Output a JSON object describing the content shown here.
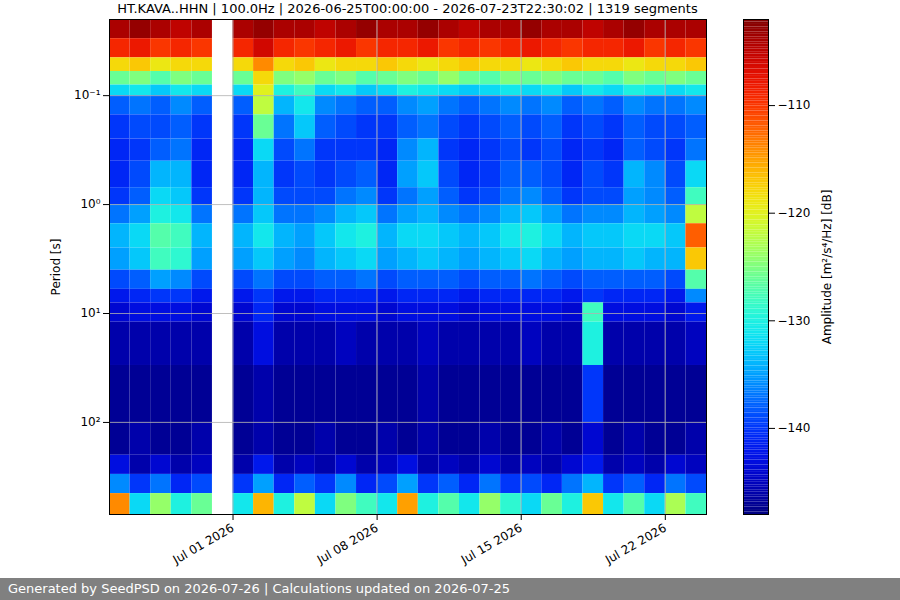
{
  "chart_data": {
    "type": "heatmap",
    "title": "HT.KAVA..HHN | 100.0Hz | 2026-06-25T00:00:00 - 2026-07-23T22:30:02 | 1319 segments",
    "y_label": "Period [s]",
    "log": "y",
    "grid": true,
    "xlim": [
      "2026-06-25",
      "2026-07-24"
    ],
    "xticks": [
      {
        "value": "2026-07-01",
        "label": "Jul 01 2026"
      },
      {
        "value": "2026-07-08",
        "label": "Jul 08 2026"
      },
      {
        "value": "2026-07-15",
        "label": "Jul 15 2026"
      },
      {
        "value": "2026-07-22",
        "label": "Jul 22 2026"
      }
    ],
    "ylim": [
      0.02,
      700
    ],
    "yticks": [
      {
        "value": 0.1,
        "label": "10⁻¹"
      },
      {
        "value": 1,
        "label": "10⁰"
      },
      {
        "value": 10,
        "label": "10¹"
      },
      {
        "value": 100,
        "label": "10²"
      }
    ],
    "x": [
      "2026-06-25",
      "2026-06-26",
      "2026-06-27",
      "2026-06-28",
      "2026-06-29",
      "2026-06-30",
      "2026-07-01",
      "2026-07-02",
      "2026-07-03",
      "2026-07-04",
      "2026-07-05",
      "2026-07-06",
      "2026-07-07",
      "2026-07-08",
      "2026-07-09",
      "2026-07-10",
      "2026-07-11",
      "2026-07-12",
      "2026-07-13",
      "2026-07-14",
      "2026-07-15",
      "2026-07-16",
      "2026-07-17",
      "2026-07-18",
      "2026-07-19",
      "2026-07-20",
      "2026-07-21",
      "2026-07-22",
      "2026-07-23"
    ],
    "period_edges": [
      0.02,
      0.03,
      0.045,
      0.06,
      0.08,
      0.1,
      0.15,
      0.25,
      0.4,
      0.7,
      1,
      1.5,
      2.5,
      4,
      6,
      8,
      12,
      30,
      100,
      200,
      300,
      450,
      700
    ],
    "values": [
      [
        -104,
        -103,
        -104,
        -105,
        -104,
        null,
        -104,
        -103,
        -104,
        -104,
        -105,
        -104,
        -103,
        -104,
        -104,
        -103,
        -104,
        -105,
        -104,
        -104,
        -103,
        -104,
        -104,
        -105,
        -104,
        -103,
        -104,
        -104,
        -104
      ],
      [
        -109,
        -108,
        -110,
        -109,
        -110,
        null,
        -109,
        -106,
        -109,
        -110,
        -109,
        -108,
        -110,
        -109,
        -109,
        -108,
        -110,
        -109,
        -110,
        -109,
        -108,
        -109,
        -110,
        -109,
        -109,
        -108,
        -110,
        -109,
        -110
      ],
      [
        -118,
        -117,
        -119,
        -118,
        -118,
        null,
        -118,
        -114,
        -118,
        -117,
        -119,
        -118,
        -118,
        -117,
        -118,
        -119,
        -118,
        -117,
        -118,
        -118,
        -119,
        -118,
        -117,
        -118,
        -118,
        -119,
        -118,
        -118,
        -117
      ],
      [
        -126,
        -125,
        -127,
        -125,
        -126,
        null,
        -126,
        -118,
        -125,
        -124,
        -126,
        -125,
        -127,
        -126,
        -125,
        -126,
        -124,
        -126,
        -127,
        -125,
        -126,
        -125,
        -126,
        -126,
        -127,
        -125,
        -126,
        -125,
        -126
      ],
      [
        -132,
        -131,
        -133,
        -131,
        -132,
        null,
        -132,
        -120,
        -130,
        -128,
        -132,
        -131,
        -133,
        -132,
        -130,
        -131,
        -132,
        -133,
        -132,
        -131,
        -132,
        -131,
        -133,
        -131,
        -132,
        -130,
        -131,
        -132,
        -131
      ],
      [
        -138,
        -137,
        -138,
        -136,
        -138,
        null,
        -138,
        -122,
        -134,
        -131,
        -136,
        -137,
        -138,
        -138,
        -136,
        -135,
        -137,
        -138,
        -137,
        -136,
        -137,
        -136,
        -138,
        -137,
        -138,
        -136,
        -137,
        -137,
        -136
      ],
      [
        -140,
        -139,
        -139,
        -138,
        -140,
        null,
        -140,
        -126,
        -137,
        -133,
        -138,
        -139,
        -140,
        -140,
        -138,
        -137,
        -139,
        -140,
        -139,
        -138,
        -139,
        -138,
        -140,
        -139,
        -140,
        -138,
        -139,
        -139,
        -138
      ],
      [
        -141,
        -140,
        -138,
        -137,
        -141,
        null,
        -141,
        -132,
        -139,
        -137,
        -140,
        -140,
        -140,
        -141,
        -136,
        -134,
        -140,
        -141,
        -140,
        -139,
        -140,
        -139,
        -141,
        -140,
        -141,
        -138,
        -139,
        -140,
        -137
      ],
      [
        -141,
        -139,
        -134,
        -134,
        -141,
        null,
        -141,
        -134,
        -140,
        -139,
        -140,
        -139,
        -138,
        -141,
        -135,
        -133,
        -139,
        -141,
        -140,
        -138,
        -138,
        -139,
        -141,
        -139,
        -140,
        -134,
        -136,
        -139,
        -132
      ],
      [
        -140,
        -138,
        -132,
        -133,
        -140,
        null,
        -140,
        -134,
        -139,
        -139,
        -139,
        -137,
        -136,
        -140,
        -137,
        -135,
        -138,
        -140,
        -139,
        -137,
        -136,
        -138,
        -140,
        -139,
        -139,
        -135,
        -136,
        -138,
        -128
      ],
      [
        -137,
        -135,
        -130,
        -131,
        -137,
        null,
        -137,
        -133,
        -137,
        -137,
        -136,
        -134,
        -133,
        -137,
        -135,
        -134,
        -136,
        -137,
        -136,
        -134,
        -133,
        -135,
        -137,
        -136,
        -136,
        -134,
        -135,
        -136,
        -122
      ],
      [
        -134,
        -132,
        -127,
        -128,
        -134,
        null,
        -134,
        -131,
        -134,
        -135,
        -133,
        -131,
        -130,
        -134,
        -132,
        -132,
        -133,
        -134,
        -133,
        -131,
        -130,
        -132,
        -134,
        -133,
        -133,
        -132,
        -132,
        -133,
        -112
      ],
      [
        -135,
        -133,
        -128,
        -129,
        -135,
        null,
        -135,
        -133,
        -135,
        -136,
        -134,
        -133,
        -132,
        -135,
        -134,
        -133,
        -134,
        -135,
        -134,
        -133,
        -132,
        -134,
        -135,
        -134,
        -134,
        -133,
        -134,
        -134,
        -117
      ],
      [
        -139,
        -138,
        -135,
        -136,
        -139,
        null,
        -139,
        -137,
        -139,
        -139,
        -138,
        -138,
        -137,
        -139,
        -138,
        -138,
        -138,
        -139,
        -138,
        -138,
        -137,
        -138,
        -139,
        -138,
        -138,
        -138,
        -138,
        -139,
        -127
      ],
      [
        -142,
        -141,
        -140,
        -140,
        -142,
        null,
        -142,
        -140,
        -142,
        -142,
        -141,
        -141,
        -141,
        -142,
        -141,
        -141,
        -141,
        -142,
        -141,
        -141,
        -141,
        -141,
        -142,
        -140,
        -141,
        -141,
        -141,
        -142,
        -136
      ],
      [
        -144,
        -143,
        -143,
        -143,
        -144,
        null,
        -144,
        -141,
        -144,
        -144,
        -143,
        -143,
        -143,
        -144,
        -143,
        -143,
        -143,
        -144,
        -143,
        -143,
        -143,
        -143,
        -144,
        -128,
        -143,
        -143,
        -143,
        -144,
        -142
      ],
      [
        -146,
        -146,
        -146,
        -146,
        -146,
        null,
        -146,
        -143,
        -146,
        -146,
        -146,
        -145,
        -146,
        -146,
        -146,
        -145,
        -146,
        -146,
        -146,
        -146,
        -145,
        -146,
        -146,
        -130,
        -146,
        -146,
        -146,
        -146,
        -145
      ],
      [
        -147,
        -147,
        -147,
        -147,
        -147,
        null,
        -147,
        -146,
        -147,
        -147,
        -147,
        -147,
        -147,
        -147,
        -147,
        -146,
        -147,
        -147,
        -147,
        -147,
        -147,
        -147,
        -147,
        -140,
        -147,
        -147,
        -147,
        -147,
        -147
      ],
      [
        -147,
        -146,
        -147,
        -147,
        -146,
        null,
        -147,
        -146,
        -147,
        -147,
        -146,
        -147,
        -147,
        -146,
        -147,
        -146,
        -147,
        -147,
        -146,
        -147,
        -147,
        -146,
        -147,
        -144,
        -147,
        -146,
        -147,
        -147,
        -146
      ],
      [
        -143,
        -146,
        -144,
        -146,
        -145,
        null,
        -146,
        -142,
        -146,
        -145,
        -146,
        -144,
        -146,
        -145,
        -143,
        -146,
        -145,
        -146,
        -144,
        -146,
        -145,
        -146,
        -144,
        -142,
        -146,
        -145,
        -146,
        -144,
        -145
      ],
      [
        -136,
        -140,
        -137,
        -141,
        -139,
        null,
        -140,
        -135,
        -141,
        -138,
        -140,
        -136,
        -141,
        -139,
        -135,
        -140,
        -138,
        -141,
        -137,
        -140,
        -139,
        -141,
        -137,
        -134,
        -140,
        -138,
        -141,
        -137,
        -139
      ],
      [
        -114,
        -132,
        -124,
        -130,
        -126,
        null,
        -131,
        -116,
        -130,
        -122,
        -132,
        -125,
        -128,
        -131,
        -115,
        -130,
        -127,
        -131,
        -124,
        -129,
        -132,
        -126,
        -130,
        -117,
        -131,
        -127,
        -132,
        -123,
        -128
      ]
    ],
    "colorbar": {
      "label": "Amplitude [m²/s⁴/Hz] [dB]",
      "lim": [
        -148,
        -102
      ],
      "ticks": [
        {
          "value": -110,
          "label": "−110"
        },
        {
          "value": -120,
          "label": "−120"
        },
        {
          "value": -130,
          "label": "−130"
        },
        {
          "value": -140,
          "label": "−140"
        }
      ]
    },
    "footer": "Generated by SeedPSD on 2026-07-26 | Calculations updated on 2026-07-25"
  }
}
